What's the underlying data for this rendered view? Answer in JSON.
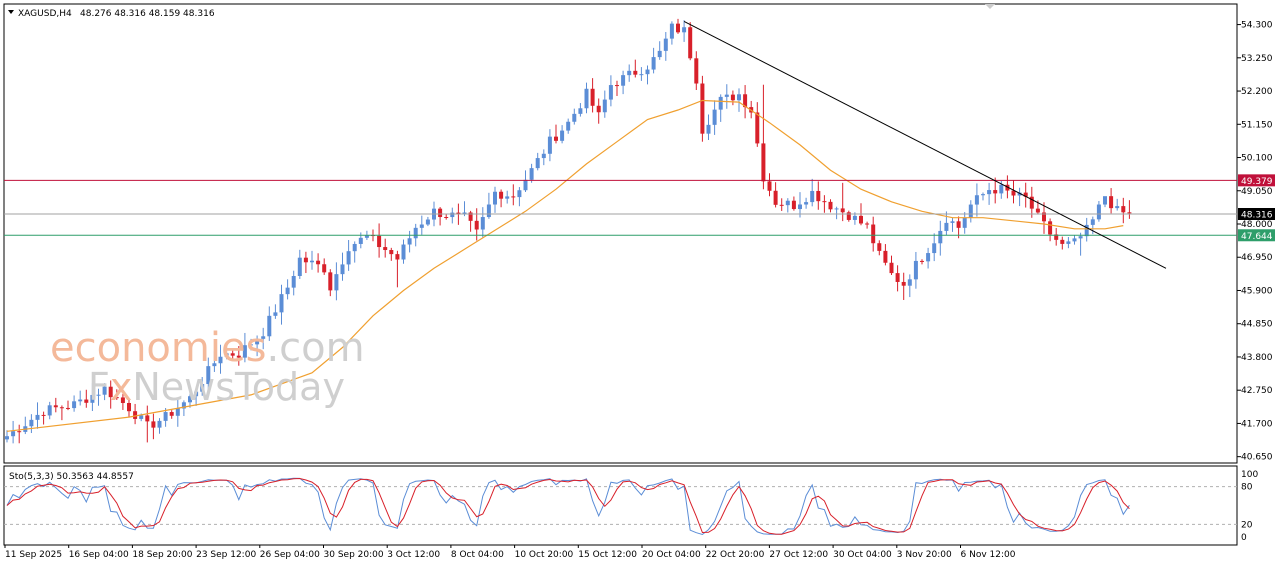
{
  "header": {
    "symbol": "XAGUSD,H4",
    "ohlc": "48.276 48.316 48.159 48.316",
    "osc_label": "Sto(5,3,3) 50.3563 44.8557"
  },
  "watermark": {
    "line1_a": "econo",
    "line1_b": "mies",
    "line1_c": ".com",
    "line2_a": "F",
    "line2_b": "x",
    "line2_c": "NewsToday"
  },
  "colors": {
    "bull": "#5b8dd6",
    "bear": "#d8202a",
    "ma": "#f0a030",
    "resistance": "#c0103a",
    "support": "#2e9e6a",
    "current": "#a0a0a0",
    "trend": "#000000",
    "stoch_main": "#5b8dd6",
    "stoch_signal": "#d8202a",
    "wm_orange": "#f4b99a",
    "wm_grey": "#cfcfcf"
  },
  "chart_data": [
    {
      "type": "candlestick",
      "title": "XAGUSD,H4",
      "y_ticks": [
        "54.300",
        "53.250",
        "52.200",
        "51.150",
        "50.100",
        "49.050",
        "48.000",
        "46.950",
        "45.900",
        "44.850",
        "43.800",
        "42.750",
        "41.700",
        "40.650"
      ],
      "ylim": [
        40.45,
        54.95
      ],
      "x_labels": [
        "11 Sep 2025",
        "16 Sep 04:00",
        "18 Sep 20:00",
        "23 Sep 12:00",
        "26 Sep 04:00",
        "30 Sep 20:00",
        "3 Oct 12:00",
        "8 Oct 04:00",
        "10 Oct 20:00",
        "15 Oct 12:00",
        "20 Oct 04:00",
        "22 Oct 20:00",
        "27 Oct 12:00",
        "30 Oct 04:00",
        "3 Nov 20:00",
        "6 Nov 12:00"
      ],
      "close_path": [
        [
          0,
          41.3
        ],
        [
          6,
          42.1
        ],
        [
          11,
          42.3
        ],
        [
          16,
          42.8
        ],
        [
          20,
          42.2
        ],
        [
          23,
          41.6
        ],
        [
          26,
          41.9
        ],
        [
          30,
          42.5
        ],
        [
          35,
          43.9
        ],
        [
          38,
          43.9
        ],
        [
          42,
          44.6
        ],
        [
          44,
          45.3
        ],
        [
          46,
          46.0
        ],
        [
          48,
          46.9
        ],
        [
          52,
          46.6
        ],
        [
          53,
          46.0
        ],
        [
          56,
          47.3
        ],
        [
          59,
          47.6
        ],
        [
          62,
          47.2
        ],
        [
          64,
          46.9
        ],
        [
          67,
          47.9
        ],
        [
          70,
          48.4
        ],
        [
          72,
          48.3
        ],
        [
          75,
          48.2
        ],
        [
          77,
          47.7
        ],
        [
          80,
          49.0
        ],
        [
          83,
          48.9
        ],
        [
          86,
          49.7
        ],
        [
          89,
          50.6
        ],
        [
          92,
          51.2
        ],
        [
          95,
          52.1
        ],
        [
          97,
          51.4
        ],
        [
          99,
          52.4
        ],
        [
          102,
          52.7
        ],
        [
          105,
          53.0
        ],
        [
          107,
          53.4
        ],
        [
          109,
          54.2
        ],
        [
          111,
          54.1
        ],
        [
          113,
          52.6
        ],
        [
          114,
          51.0
        ],
        [
          117,
          51.9
        ],
        [
          120,
          52.1
        ],
        [
          122,
          51.6
        ],
        [
          124,
          49.5
        ],
        [
          126,
          48.7
        ],
        [
          129,
          48.6
        ],
        [
          132,
          49.0
        ],
        [
          135,
          48.6
        ],
        [
          138,
          48.3
        ],
        [
          141,
          47.9
        ],
        [
          143,
          47.0
        ],
        [
          145,
          46.4
        ],
        [
          147,
          46.1
        ],
        [
          149,
          46.7
        ],
        [
          152,
          47.5
        ],
        [
          154,
          48.2
        ],
        [
          156,
          47.9
        ],
        [
          158,
          48.6
        ],
        [
          161,
          49.1
        ],
        [
          163,
          49.1
        ],
        [
          165,
          48.9
        ],
        [
          167,
          48.8
        ],
        [
          169,
          48.2
        ],
        [
          171,
          47.7
        ],
        [
          173,
          47.3
        ],
        [
          175,
          47.4
        ],
        [
          177,
          47.8
        ],
        [
          178,
          48.1
        ],
        [
          180,
          48.9
        ],
        [
          182,
          48.4
        ],
        [
          184,
          48.3
        ]
      ],
      "moving_average": [
        [
          0,
          41.45
        ],
        [
          20,
          41.9
        ],
        [
          40,
          42.6
        ],
        [
          50,
          43.3
        ],
        [
          55,
          44.1
        ],
        [
          60,
          45.1
        ],
        [
          65,
          45.9
        ],
        [
          70,
          46.6
        ],
        [
          75,
          47.2
        ],
        [
          80,
          47.8
        ],
        [
          85,
          48.4
        ],
        [
          90,
          49.1
        ],
        [
          95,
          49.9
        ],
        [
          100,
          50.6
        ],
        [
          105,
          51.3
        ],
        [
          110,
          51.6
        ],
        [
          114,
          51.9
        ],
        [
          120,
          51.85
        ],
        [
          125,
          51.2
        ],
        [
          130,
          50.5
        ],
        [
          135,
          49.7
        ],
        [
          140,
          49.1
        ],
        [
          145,
          48.7
        ],
        [
          150,
          48.4
        ],
        [
          155,
          48.2
        ],
        [
          160,
          48.2
        ],
        [
          165,
          48.1
        ],
        [
          170,
          48.0
        ],
        [
          175,
          47.85
        ],
        [
          180,
          47.85
        ],
        [
          183,
          47.95
        ]
      ],
      "highs": [
        [
          111,
          54.44
        ],
        [
          124,
          52.4
        ],
        [
          137,
          49.3
        ],
        [
          161,
          49.3
        ],
        [
          180,
          48.8
        ]
      ],
      "lows": [
        [
          0,
          41.1
        ],
        [
          23,
          41.1
        ],
        [
          64,
          46.0
        ],
        [
          114,
          50.6
        ],
        [
          147,
          45.6
        ],
        [
          176,
          47.0
        ]
      ],
      "levels": [
        {
          "label": "49.379",
          "value": 49.379,
          "style": "resistance"
        },
        {
          "label": "48.316",
          "value": 48.316,
          "style": "current"
        },
        {
          "label": "47.644",
          "value": 47.644,
          "style": "support"
        }
      ],
      "trendline": [
        [
          111,
          54.4
        ],
        [
          190,
          46.6
        ]
      ]
    },
    {
      "type": "line",
      "title": "Sto(5,3,3) 50.3563 44.8557",
      "y_ticks": [
        "100",
        "80",
        "20",
        "0"
      ],
      "levels": [
        80,
        20
      ],
      "ylim": [
        0,
        100
      ],
      "main_value": 50.3563,
      "signal_value": 44.8557
    }
  ]
}
